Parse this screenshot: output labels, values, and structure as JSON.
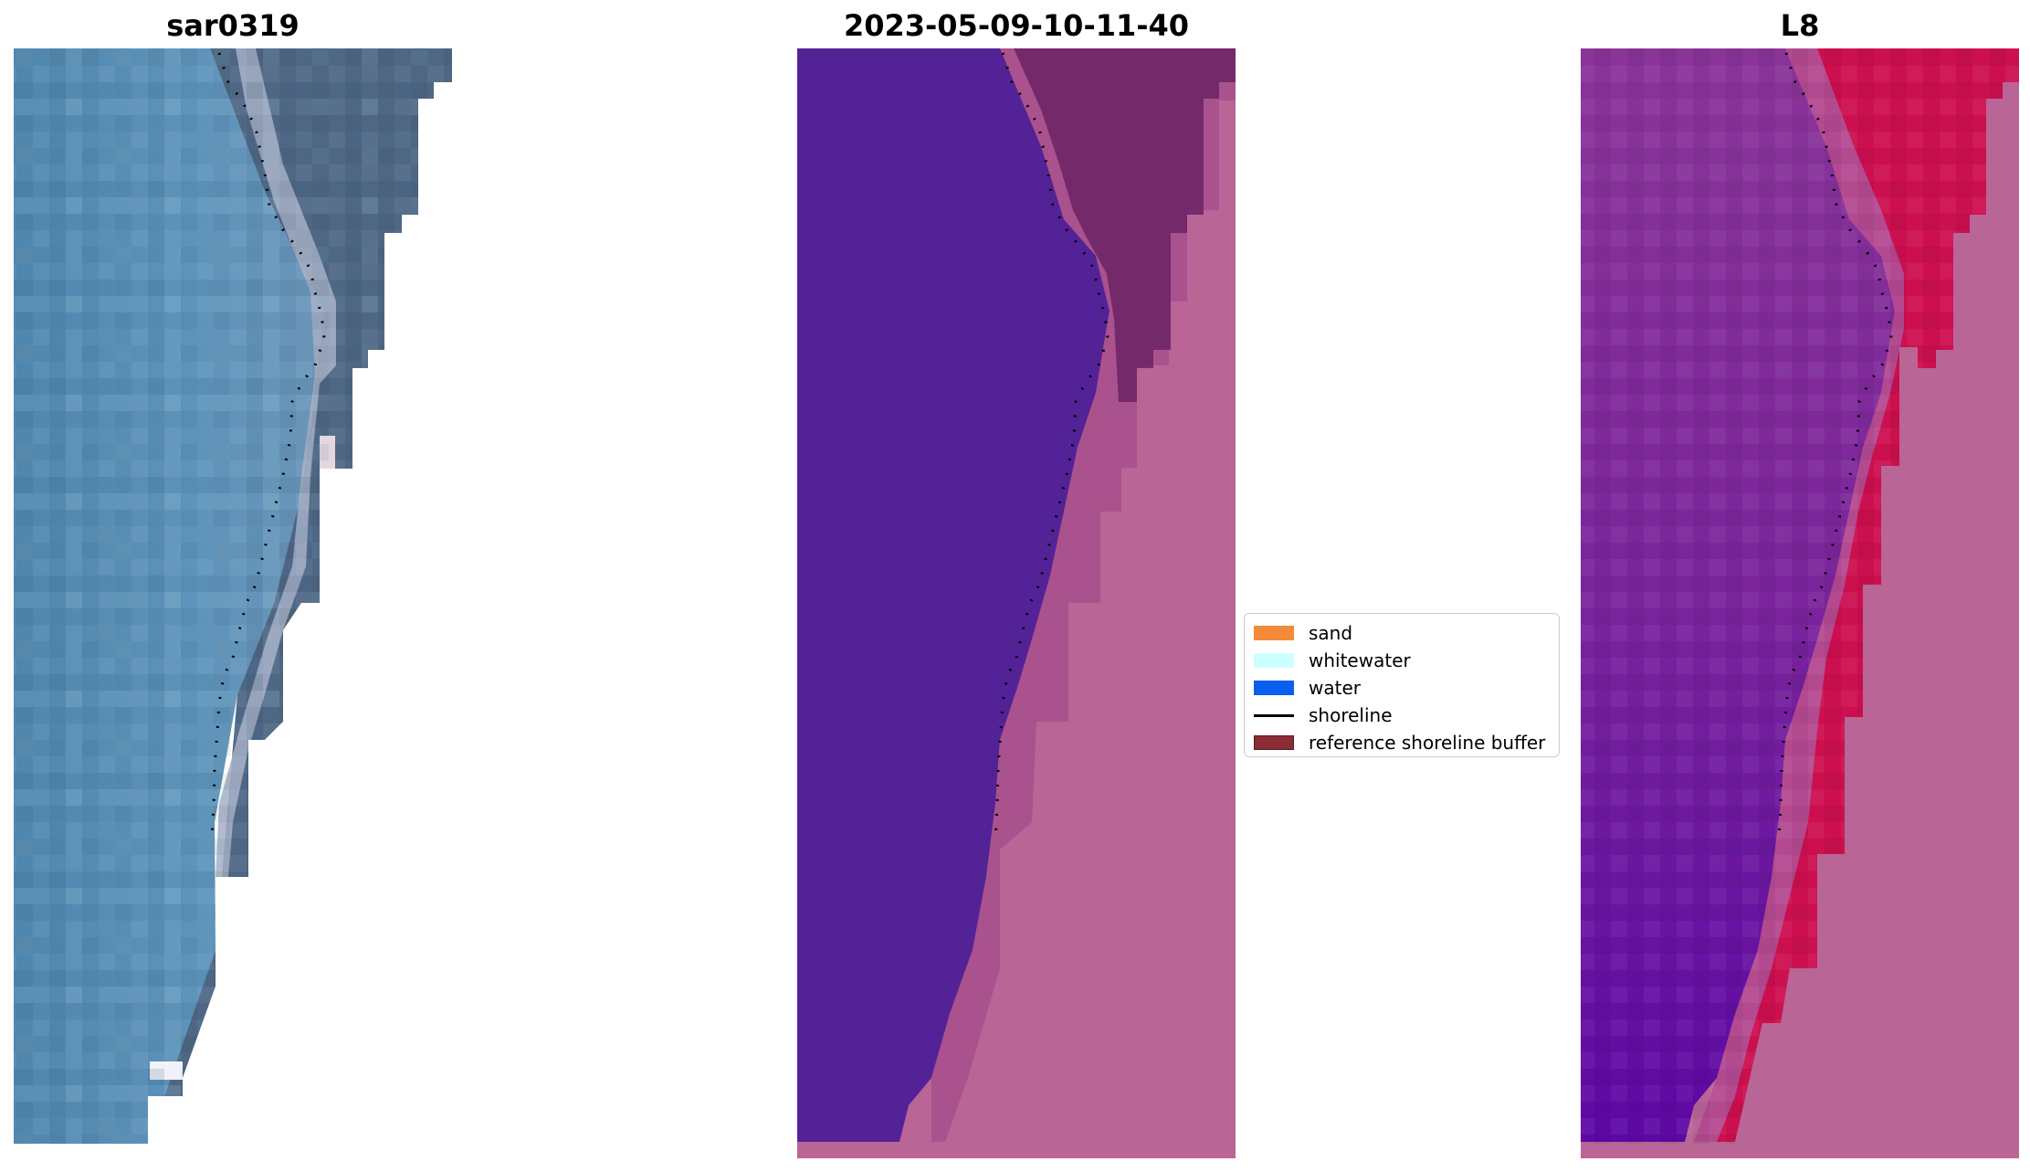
{
  "panels": [
    {
      "title": "sar0319"
    },
    {
      "title": "2023-05-09-10-11-40"
    },
    {
      "title": "L8"
    }
  ],
  "legend": {
    "items": [
      {
        "label": "sand",
        "color": "#f58a3b",
        "kind": "patch"
      },
      {
        "label": "whitewater",
        "color": "#ccffff",
        "kind": "patch"
      },
      {
        "label": "water",
        "color": "#0a5ef0",
        "kind": "patch"
      },
      {
        "label": "shoreline",
        "color": "#000000",
        "kind": "line"
      },
      {
        "label": "reference shoreline buffer",
        "color": "#8b2b34",
        "kind": "patch"
      }
    ]
  },
  "colors": {
    "water_class": "#542297",
    "sand_class": "#b96596",
    "buffer_over_water": "#7c2a6e",
    "sar_ocean": "#5a8fb4",
    "sar_land": "#4b6482",
    "l8_ocean": "#7e2c98",
    "l8_land": "#cc0f4f"
  }
}
